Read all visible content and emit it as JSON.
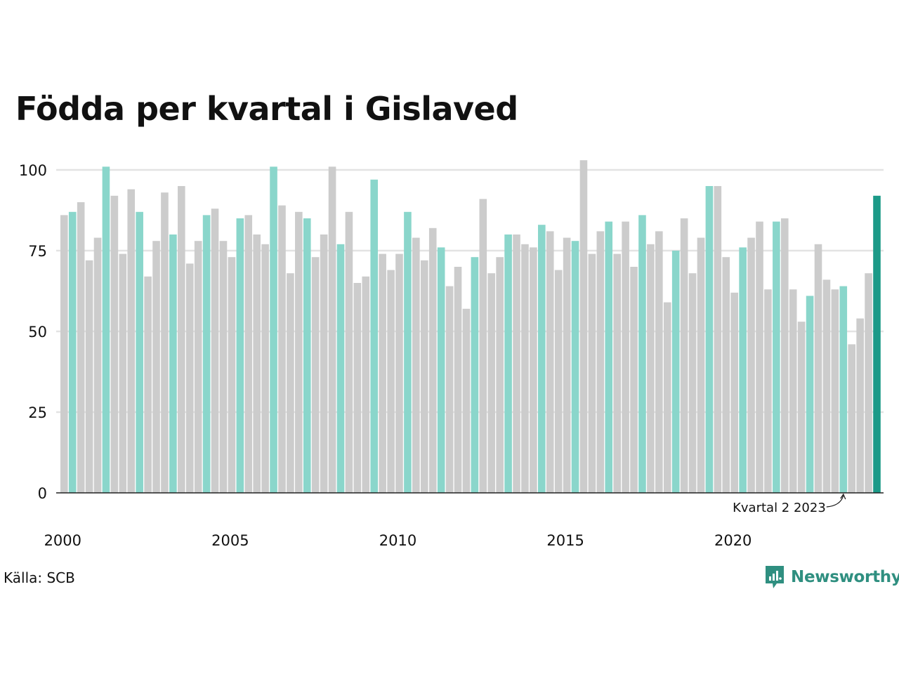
{
  "title": "Födda per kvartal i Gislaved",
  "source": "Källa: SCB",
  "brand": {
    "name": "Newsworthy",
    "icon": "newsworthy-logo-icon"
  },
  "colors": {
    "default": "#cccccc",
    "highlight": "#8ad6cb",
    "latest": "#1c9a88",
    "grid": "#e3e3e3",
    "axis": "#222222"
  },
  "chart_data": {
    "type": "bar",
    "title": "Födda per kvartal i Gislaved",
    "start": {
      "year": 2000,
      "quarter": 1
    },
    "x_tick_labels": [
      "2000",
      "2005",
      "2010",
      "2015",
      "2020"
    ],
    "y_ticks": [
      0,
      25,
      50,
      75,
      100
    ],
    "ylim": [
      0,
      105
    ],
    "grid": true,
    "highlight_quarter": 2,
    "annotation": {
      "label": "Kvartal 2 2023",
      "year": 2023,
      "quarter": 2
    },
    "values": [
      86,
      87,
      90,
      72,
      79,
      101,
      92,
      74,
      94,
      87,
      67,
      78,
      93,
      80,
      95,
      71,
      78,
      86,
      88,
      78,
      73,
      85,
      86,
      80,
      77,
      101,
      89,
      68,
      87,
      85,
      73,
      80,
      101,
      77,
      87,
      65,
      67,
      97,
      74,
      69,
      74,
      87,
      79,
      72,
      82,
      76,
      64,
      70,
      57,
      73,
      91,
      68,
      73,
      80,
      80,
      77,
      76,
      83,
      81,
      69,
      79,
      78,
      103,
      74,
      81,
      84,
      74,
      84,
      70,
      86,
      77,
      81,
      59,
      75,
      85,
      68,
      79,
      95,
      95,
      73,
      62,
      76,
      79,
      84,
      63,
      84,
      85,
      63,
      53,
      61,
      77,
      66,
      63,
      64,
      46,
      54,
      68,
      92
    ]
  }
}
